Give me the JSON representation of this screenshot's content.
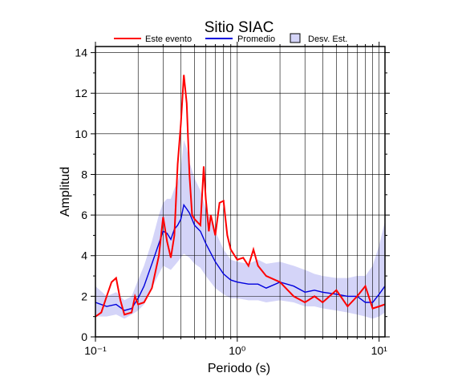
{
  "chart_data": {
    "type": "line",
    "title": "Sitio SIAC",
    "x_label": "Periodo (s)",
    "y_label": "Amplitud",
    "log_x": true,
    "grid": true,
    "xlim": [
      0.1,
      11
    ],
    "ylim": [
      0,
      14.3
    ],
    "xticks": [
      {
        "value": 0.1,
        "label": "10⁻¹"
      },
      {
        "value": 1,
        "label": "10⁰"
      },
      {
        "value": 10,
        "label": "10¹"
      }
    ],
    "xgrid": [
      0.2,
      0.3,
      0.4,
      0.5,
      0.6,
      0.7,
      0.8,
      0.9,
      2,
      3,
      4,
      5,
      6,
      7,
      8,
      9
    ],
    "yticks": [
      0,
      2,
      4,
      6,
      8,
      10,
      12,
      14
    ],
    "yminor": [
      1,
      3,
      5,
      7,
      9,
      11,
      13
    ],
    "x": [
      0.1,
      0.12,
      0.14,
      0.16,
      0.18,
      0.2,
      0.22,
      0.25,
      0.28,
      0.3,
      0.32,
      0.34,
      0.36,
      0.38,
      0.4,
      0.42,
      0.44,
      0.46,
      0.5,
      0.55,
      0.6,
      0.7,
      0.8,
      0.9,
      1.0,
      1.2,
      1.4,
      1.6,
      2.0,
      2.5,
      3,
      3.5,
      4,
      5,
      6,
      7,
      8,
      9,
      10,
      11
    ],
    "series": [
      {
        "name": "Este evento",
        "color": "#ff0000",
        "x": [
          0.1,
          0.11,
          0.12,
          0.13,
          0.14,
          0.15,
          0.16,
          0.18,
          0.19,
          0.2,
          0.22,
          0.25,
          0.28,
          0.3,
          0.32,
          0.34,
          0.36,
          0.38,
          0.4,
          0.42,
          0.44,
          0.46,
          0.48,
          0.5,
          0.55,
          0.58,
          0.6,
          0.63,
          0.65,
          0.7,
          0.75,
          0.8,
          0.85,
          0.9,
          1.0,
          1.1,
          1.2,
          1.3,
          1.4,
          1.6,
          2.0,
          2.5,
          3,
          3.5,
          4,
          5,
          6,
          7,
          8,
          9,
          10,
          11
        ],
        "values": [
          1.0,
          1.2,
          2.0,
          2.7,
          2.9,
          1.8,
          1.1,
          1.2,
          2.0,
          1.6,
          1.7,
          2.4,
          4.0,
          5.9,
          4.7,
          3.9,
          5.0,
          8.5,
          10.5,
          12.9,
          11.5,
          8.0,
          6.0,
          5.8,
          5.5,
          8.4,
          6.8,
          5.2,
          6.0,
          5.0,
          6.6,
          6.7,
          5.0,
          4.3,
          3.8,
          3.9,
          3.5,
          4.3,
          3.5,
          3.0,
          2.7,
          2.0,
          1.7,
          2.0,
          1.7,
          2.3,
          1.5,
          2.0,
          2.5,
          1.4,
          1.5,
          1.6
        ]
      },
      {
        "name": "Promedio",
        "color": "#0000dd",
        "values": [
          1.7,
          1.5,
          1.6,
          1.3,
          1.4,
          1.9,
          2.5,
          3.6,
          4.6,
          5.2,
          5.1,
          4.8,
          5.3,
          5.5,
          5.8,
          6.5,
          6.3,
          6.1,
          5.5,
          5.2,
          4.6,
          3.7,
          3.1,
          2.8,
          2.7,
          2.6,
          2.6,
          2.4,
          2.7,
          2.5,
          2.2,
          2.3,
          2.2,
          2.1,
          2.0,
          2.0,
          1.7,
          1.7,
          2.1,
          2.5
        ]
      }
    ],
    "band": {
      "name": "Desv. Est.",
      "color": "#d4d4f8",
      "lower": [
        1.0,
        1.0,
        1.1,
        0.9,
        1.1,
        1.3,
        1.6,
        2.4,
        3.1,
        3.5,
        3.4,
        3.3,
        3.5,
        3.7,
        3.9,
        4.1,
        4.0,
        3.9,
        3.6,
        3.4,
        3.0,
        2.4,
        2.1,
        1.9,
        1.9,
        1.8,
        1.8,
        1.7,
        1.8,
        1.7,
        1.5,
        1.5,
        1.4,
        1.3,
        1.2,
        1.1,
        1.0,
        0.9,
        1.0,
        1.2
      ],
      "upper": [
        2.5,
        2.0,
        2.2,
        1.8,
        2.0,
        2.8,
        3.5,
        4.7,
        6.0,
        6.6,
        6.8,
        6.8,
        7.3,
        7.6,
        8.3,
        9.7,
        9.3,
        8.6,
        7.8,
        7.2,
        6.3,
        5.2,
        4.3,
        3.8,
        3.7,
        3.6,
        3.8,
        3.6,
        3.7,
        3.5,
        3.3,
        3.1,
        3.0,
        2.9,
        2.9,
        3.0,
        3.0,
        3.5,
        4.5,
        5.7
      ]
    }
  }
}
